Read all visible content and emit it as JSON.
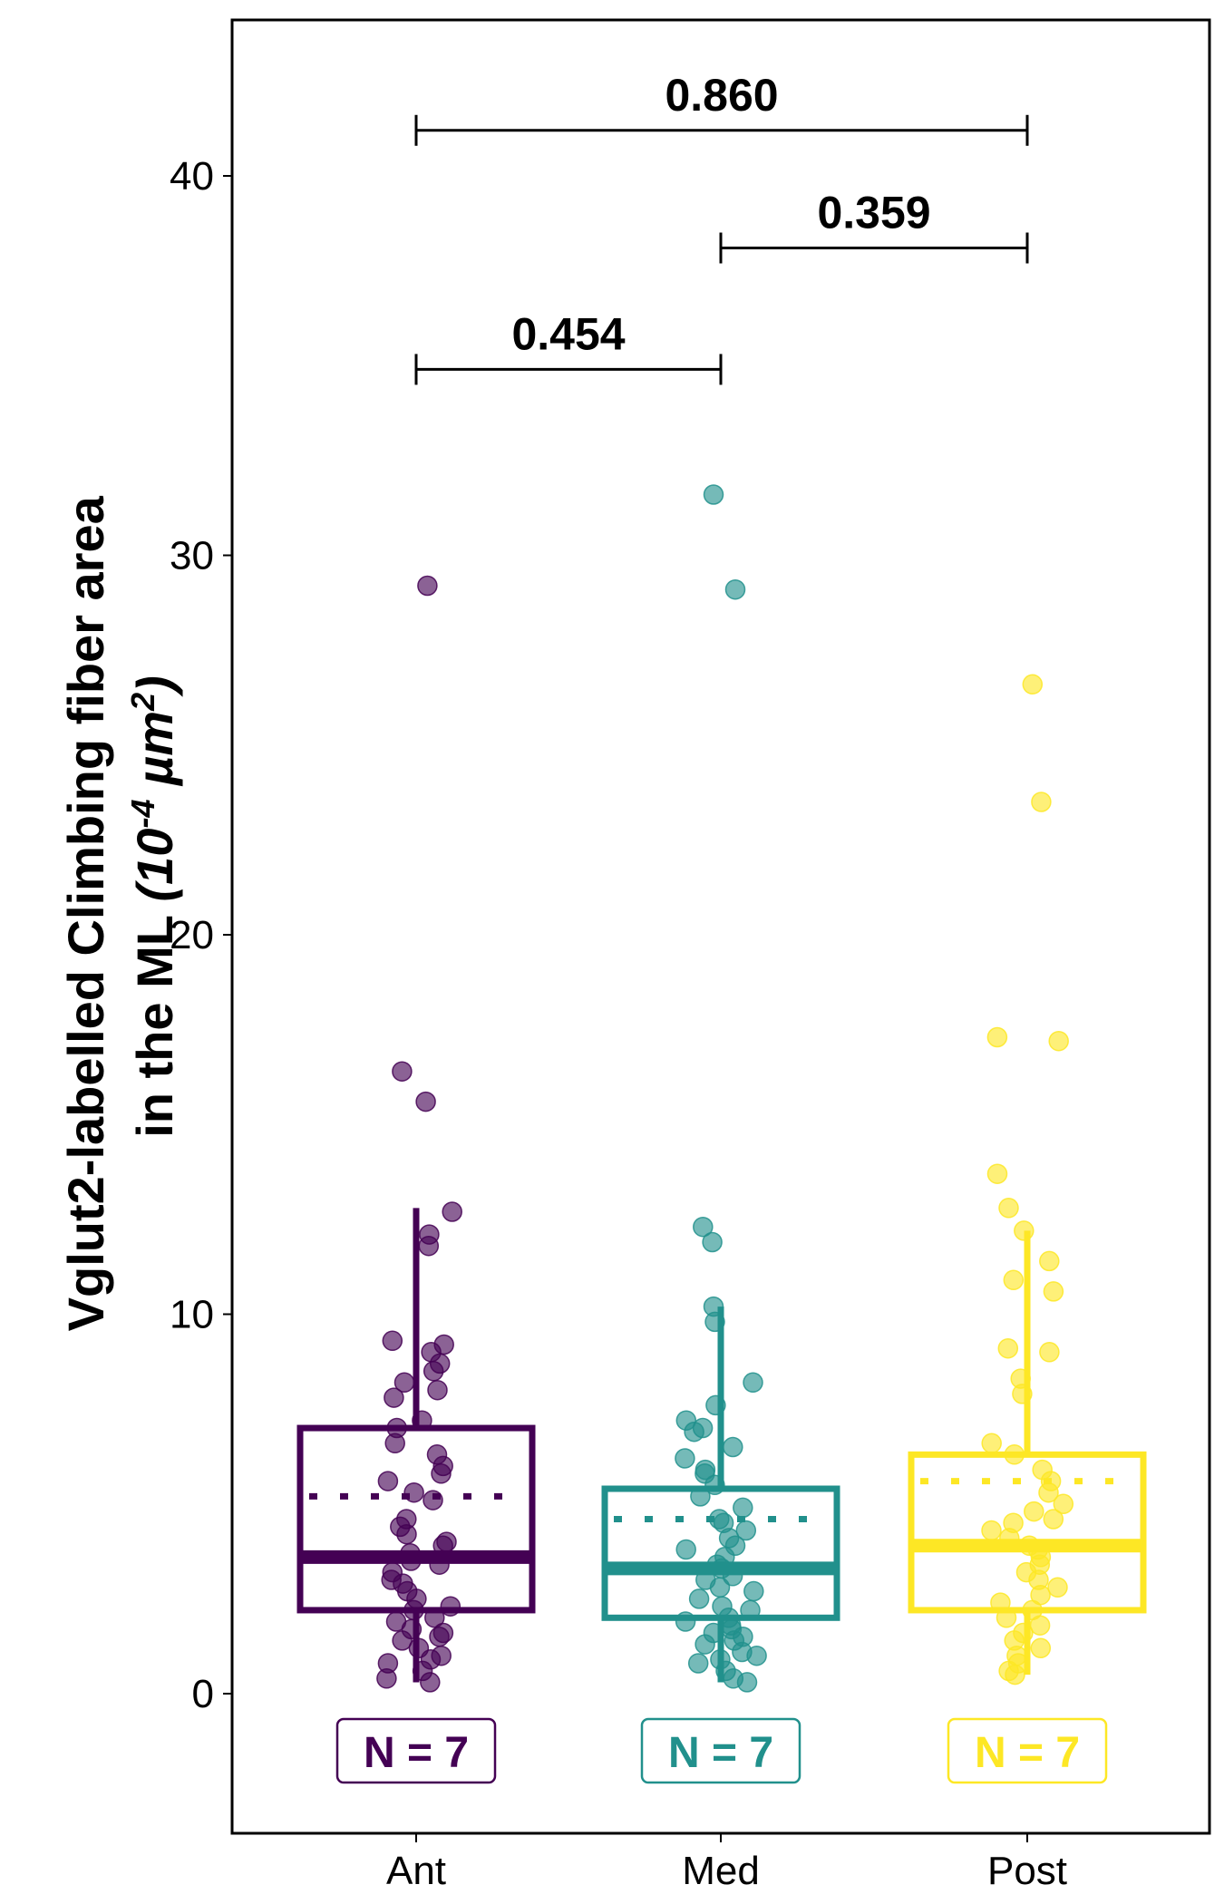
{
  "chart_data": {
    "type": "box",
    "title": "",
    "xlabel": "",
    "ylabel_line1": "Vglut2-labelled Climbing fiber area",
    "ylabel_line2_prefix": "in the ML ",
    "ylabel_units_base": "(10",
    "ylabel_units_exp": "-4",
    "ylabel_units_mid": " µm",
    "ylabel_units_exp2": "2",
    "ylabel_units_close": ")",
    "ylim": [
      -3.5,
      44
    ],
    "yticks": [
      "0",
      "10",
      "20",
      "30",
      "40"
    ],
    "yticks_values": [
      0,
      10,
      20,
      30,
      40
    ],
    "grid": false,
    "categories": [
      "Ant",
      "Med",
      "Post"
    ],
    "colors": [
      "#440154",
      "#21908C",
      "#FDE725"
    ],
    "boxes": [
      {
        "name": "Ant",
        "q1": 2.2,
        "median": 3.6,
        "q3": 7.0,
        "whisker_low": 0.3,
        "whisker_high": 12.8,
        "mean": 5.2,
        "n_label": "N = 7"
      },
      {
        "name": "Med",
        "q1": 2.0,
        "median": 3.3,
        "q3": 5.4,
        "whisker_low": 0.3,
        "whisker_high": 10.2,
        "mean": 4.6,
        "n_label": "N = 7"
      },
      {
        "name": "Post",
        "q1": 2.2,
        "median": 3.9,
        "q3": 6.3,
        "whisker_low": 0.5,
        "whisker_high": 12.2,
        "mean": 5.6,
        "n_label": "N = 7"
      }
    ],
    "points": [
      [
        29.2,
        16.4,
        15.6,
        12.7,
        12.1,
        11.8,
        9.3,
        9.2,
        9.0,
        8.7,
        8.5,
        8.2,
        8.0,
        7.8,
        7.2,
        7.0,
        6.6,
        6.3,
        6.0,
        5.8,
        5.6,
        5.3,
        5.1,
        4.6,
        4.4,
        4.2,
        4.0,
        3.9,
        3.7,
        3.5,
        3.4,
        3.2,
        3.0,
        2.9,
        2.7,
        2.5,
        2.3,
        2.2,
        2.0,
        1.9,
        1.7,
        1.6,
        1.5,
        1.4,
        1.2,
        1.0,
        0.9,
        0.8,
        0.6,
        0.4,
        0.3
      ],
      [
        31.6,
        29.1,
        12.3,
        11.9,
        10.2,
        9.8,
        8.2,
        7.6,
        7.2,
        7.0,
        6.9,
        6.5,
        6.2,
        5.9,
        5.8,
        5.5,
        5.2,
        4.9,
        4.6,
        4.5,
        4.3,
        4.1,
        3.9,
        3.8,
        3.6,
        3.4,
        3.3,
        3.1,
        3.0,
        2.8,
        2.7,
        2.5,
        2.3,
        2.2,
        2.0,
        1.9,
        1.8,
        1.7,
        1.6,
        1.5,
        1.4,
        1.3,
        1.1,
        1.0,
        0.9,
        0.8,
        0.6,
        0.4,
        0.3
      ],
      [
        26.6,
        23.5,
        17.3,
        17.2,
        13.7,
        12.8,
        12.2,
        11.4,
        10.9,
        10.6,
        9.1,
        9.0,
        8.3,
        7.9,
        6.6,
        6.3,
        5.9,
        5.6,
        5.3,
        5.0,
        4.8,
        4.6,
        4.5,
        4.3,
        4.1,
        3.9,
        3.8,
        3.6,
        3.4,
        3.2,
        3.0,
        2.8,
        2.6,
        2.4,
        2.2,
        2.0,
        1.8,
        1.6,
        1.4,
        1.2,
        1.0,
        0.8,
        0.6,
        0.5
      ]
    ],
    "comparisons": [
      {
        "from": "Ant",
        "to": "Post",
        "y": 41.2,
        "label": "0.860"
      },
      {
        "from": "Med",
        "to": "Post",
        "y": 38.1,
        "label": "0.359"
      },
      {
        "from": "Ant",
        "to": "Med",
        "y": 34.9,
        "label": "0.454"
      }
    ]
  }
}
